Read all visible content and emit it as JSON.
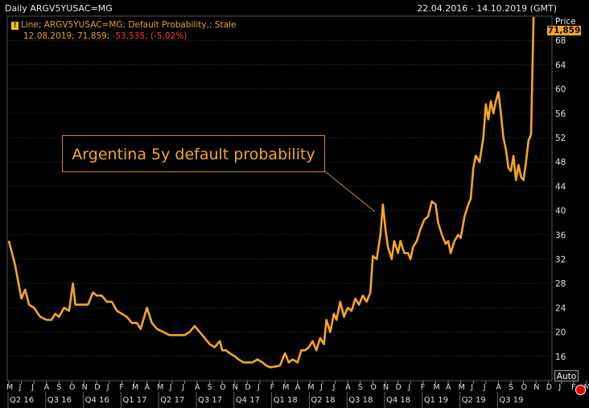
{
  "header": {
    "title": "Daily ARGV5YUSAC=MG",
    "date_range": "22.04.2016 - 14.10.2019 (GMT)"
  },
  "legend": {
    "line1": "Line; ARGV5YUSAC=MG; Default Probability,; Stale",
    "line2_date": "12.08.2019;",
    "line2_value": "71,859;",
    "line2_change": "-53,535; (-5,02%)"
  },
  "annotation": "Argentina 5y default probability",
  "price_label": "Price",
  "last_price": "71,859",
  "auto_button": "Auto",
  "colors": {
    "line": "#f5a623",
    "grid": "#444444",
    "axis_text": "#e0e0e0",
    "background": "#000000"
  },
  "chart_data": {
    "type": "line",
    "title": "Daily ARGV5YUSAC=MG",
    "ylabel": "Price",
    "ylim": [
      12,
      72
    ],
    "yticks": [
      16,
      20,
      24,
      28,
      32,
      36,
      40,
      44,
      48,
      52,
      56,
      60,
      64,
      68
    ],
    "month_labels": [
      "M",
      "J",
      "J",
      "A",
      "S",
      "O",
      "N",
      "D",
      "J",
      "F",
      "M",
      "A",
      "M",
      "J",
      "J",
      "A",
      "S",
      "O",
      "N",
      "D",
      "J",
      "F",
      "M",
      "A",
      "M",
      "J",
      "J",
      "A",
      "S",
      "O",
      "N",
      "D",
      "J",
      "F",
      "M",
      "A",
      "M",
      "J",
      "J",
      "A",
      "S",
      "O",
      "N",
      "D",
      "J",
      "F",
      "M",
      "A",
      "M",
      "J",
      "J",
      "A",
      "S",
      "O"
    ],
    "quarter_labels": [
      "Q2 16",
      "Q3 16",
      "Q4 16",
      "Q1 17",
      "Q2 17",
      "Q3 17",
      "Q4 17",
      "Q1 18",
      "Q2 18",
      "Q3 18",
      "Q4 18",
      "Q1 19",
      "Q2 19",
      "Q3 19"
    ],
    "series": [
      {
        "values_by_month_index": [
          [
            0,
            35
          ],
          [
            0.5,
            31
          ],
          [
            1,
            25.5
          ],
          [
            1.3,
            27
          ],
          [
            1.6,
            24.5
          ],
          [
            2,
            24
          ],
          [
            2.5,
            22.5
          ],
          [
            3,
            22
          ],
          [
            3.4,
            22
          ],
          [
            3.7,
            23
          ],
          [
            4,
            22.5
          ],
          [
            4.4,
            24
          ],
          [
            4.8,
            23.5
          ],
          [
            5.1,
            28
          ],
          [
            5.3,
            24.5
          ],
          [
            5.8,
            24.5
          ],
          [
            6.3,
            24.5
          ],
          [
            6.7,
            26.5
          ],
          [
            7,
            26
          ],
          [
            7.4,
            26
          ],
          [
            7.8,
            25
          ],
          [
            8.2,
            25
          ],
          [
            8.6,
            23.5
          ],
          [
            9,
            23
          ],
          [
            9.4,
            22.5
          ],
          [
            9.8,
            21.5
          ],
          [
            10.2,
            21.5
          ],
          [
            10.5,
            20.5
          ],
          [
            11,
            24
          ],
          [
            11.4,
            21.5
          ],
          [
            11.8,
            20.5
          ],
          [
            12.3,
            20
          ],
          [
            12.8,
            19.5
          ],
          [
            13.2,
            19.5
          ],
          [
            13.6,
            19.5
          ],
          [
            14,
            19.5
          ],
          [
            14.4,
            20
          ],
          [
            14.8,
            21
          ],
          [
            15.2,
            20
          ],
          [
            15.6,
            19
          ],
          [
            16,
            18
          ],
          [
            16.4,
            17.5
          ],
          [
            16.8,
            18.5
          ],
          [
            17,
            17
          ],
          [
            17.3,
            17
          ],
          [
            17.6,
            16.5
          ],
          [
            18,
            16
          ],
          [
            18.3,
            15.5
          ],
          [
            18.7,
            15
          ],
          [
            19,
            15
          ],
          [
            19.4,
            15
          ],
          [
            19.8,
            15.5
          ],
          [
            20.2,
            15
          ],
          [
            20.5,
            14.5
          ],
          [
            20.8,
            14.2
          ],
          [
            21.2,
            14.3
          ],
          [
            21.6,
            14.5
          ],
          [
            22,
            16.5
          ],
          [
            22.3,
            15
          ],
          [
            22.6,
            15.5
          ],
          [
            23,
            15
          ],
          [
            23.3,
            17
          ],
          [
            23.6,
            17
          ],
          [
            23.9,
            17.5
          ],
          [
            24.2,
            18.5
          ],
          [
            24.5,
            17
          ],
          [
            24.8,
            19
          ],
          [
            25.1,
            18
          ],
          [
            25.3,
            22
          ],
          [
            25.6,
            20
          ],
          [
            25.9,
            23
          ],
          [
            26.1,
            22
          ],
          [
            26.4,
            25
          ],
          [
            26.7,
            22.5
          ],
          [
            27,
            24
          ],
          [
            27.3,
            23.5
          ],
          [
            27.6,
            25.5
          ],
          [
            27.9,
            24.5
          ],
          [
            28.2,
            26
          ],
          [
            28.5,
            25
          ],
          [
            28.8,
            26.5
          ],
          [
            29,
            32.5
          ],
          [
            29.3,
            32
          ],
          [
            29.6,
            36
          ],
          [
            29.8,
            41
          ],
          [
            30,
            37
          ],
          [
            30.2,
            34
          ],
          [
            30.5,
            32
          ],
          [
            30.7,
            35
          ],
          [
            31,
            33
          ],
          [
            31.2,
            35
          ],
          [
            31.5,
            33
          ],
          [
            31.8,
            33
          ],
          [
            32,
            32
          ],
          [
            32.2,
            34
          ],
          [
            32.5,
            35
          ],
          [
            32.8,
            37
          ],
          [
            33.1,
            38.5
          ],
          [
            33.4,
            39
          ],
          [
            33.7,
            41.5
          ],
          [
            34,
            41
          ],
          [
            34.2,
            38
          ],
          [
            34.5,
            36
          ],
          [
            34.8,
            34.5
          ],
          [
            35,
            35
          ],
          [
            35.2,
            33
          ],
          [
            35.5,
            35
          ],
          [
            35.8,
            36
          ],
          [
            36,
            35.5
          ],
          [
            36.3,
            39
          ],
          [
            36.6,
            41
          ],
          [
            36.8,
            42
          ],
          [
            37,
            47
          ],
          [
            37.2,
            49
          ],
          [
            37.5,
            48
          ],
          [
            37.8,
            52
          ],
          [
            38,
            57.5
          ],
          [
            38.2,
            55
          ],
          [
            38.4,
            58
          ],
          [
            38.6,
            56
          ],
          [
            38.8,
            58
          ],
          [
            39,
            59.5
          ],
          [
            39.2,
            56
          ],
          [
            39.4,
            52
          ],
          [
            39.6,
            50
          ],
          [
            39.8,
            47
          ],
          [
            40,
            46.5
          ],
          [
            40.2,
            49
          ],
          [
            40.4,
            45
          ],
          [
            40.6,
            47.5
          ],
          [
            40.8,
            45.5
          ],
          [
            41,
            45
          ],
          [
            41.2,
            48
          ],
          [
            41.4,
            51.5
          ],
          [
            41.6,
            52.5
          ],
          [
            41.8,
            71.86
          ]
        ]
      }
    ]
  }
}
